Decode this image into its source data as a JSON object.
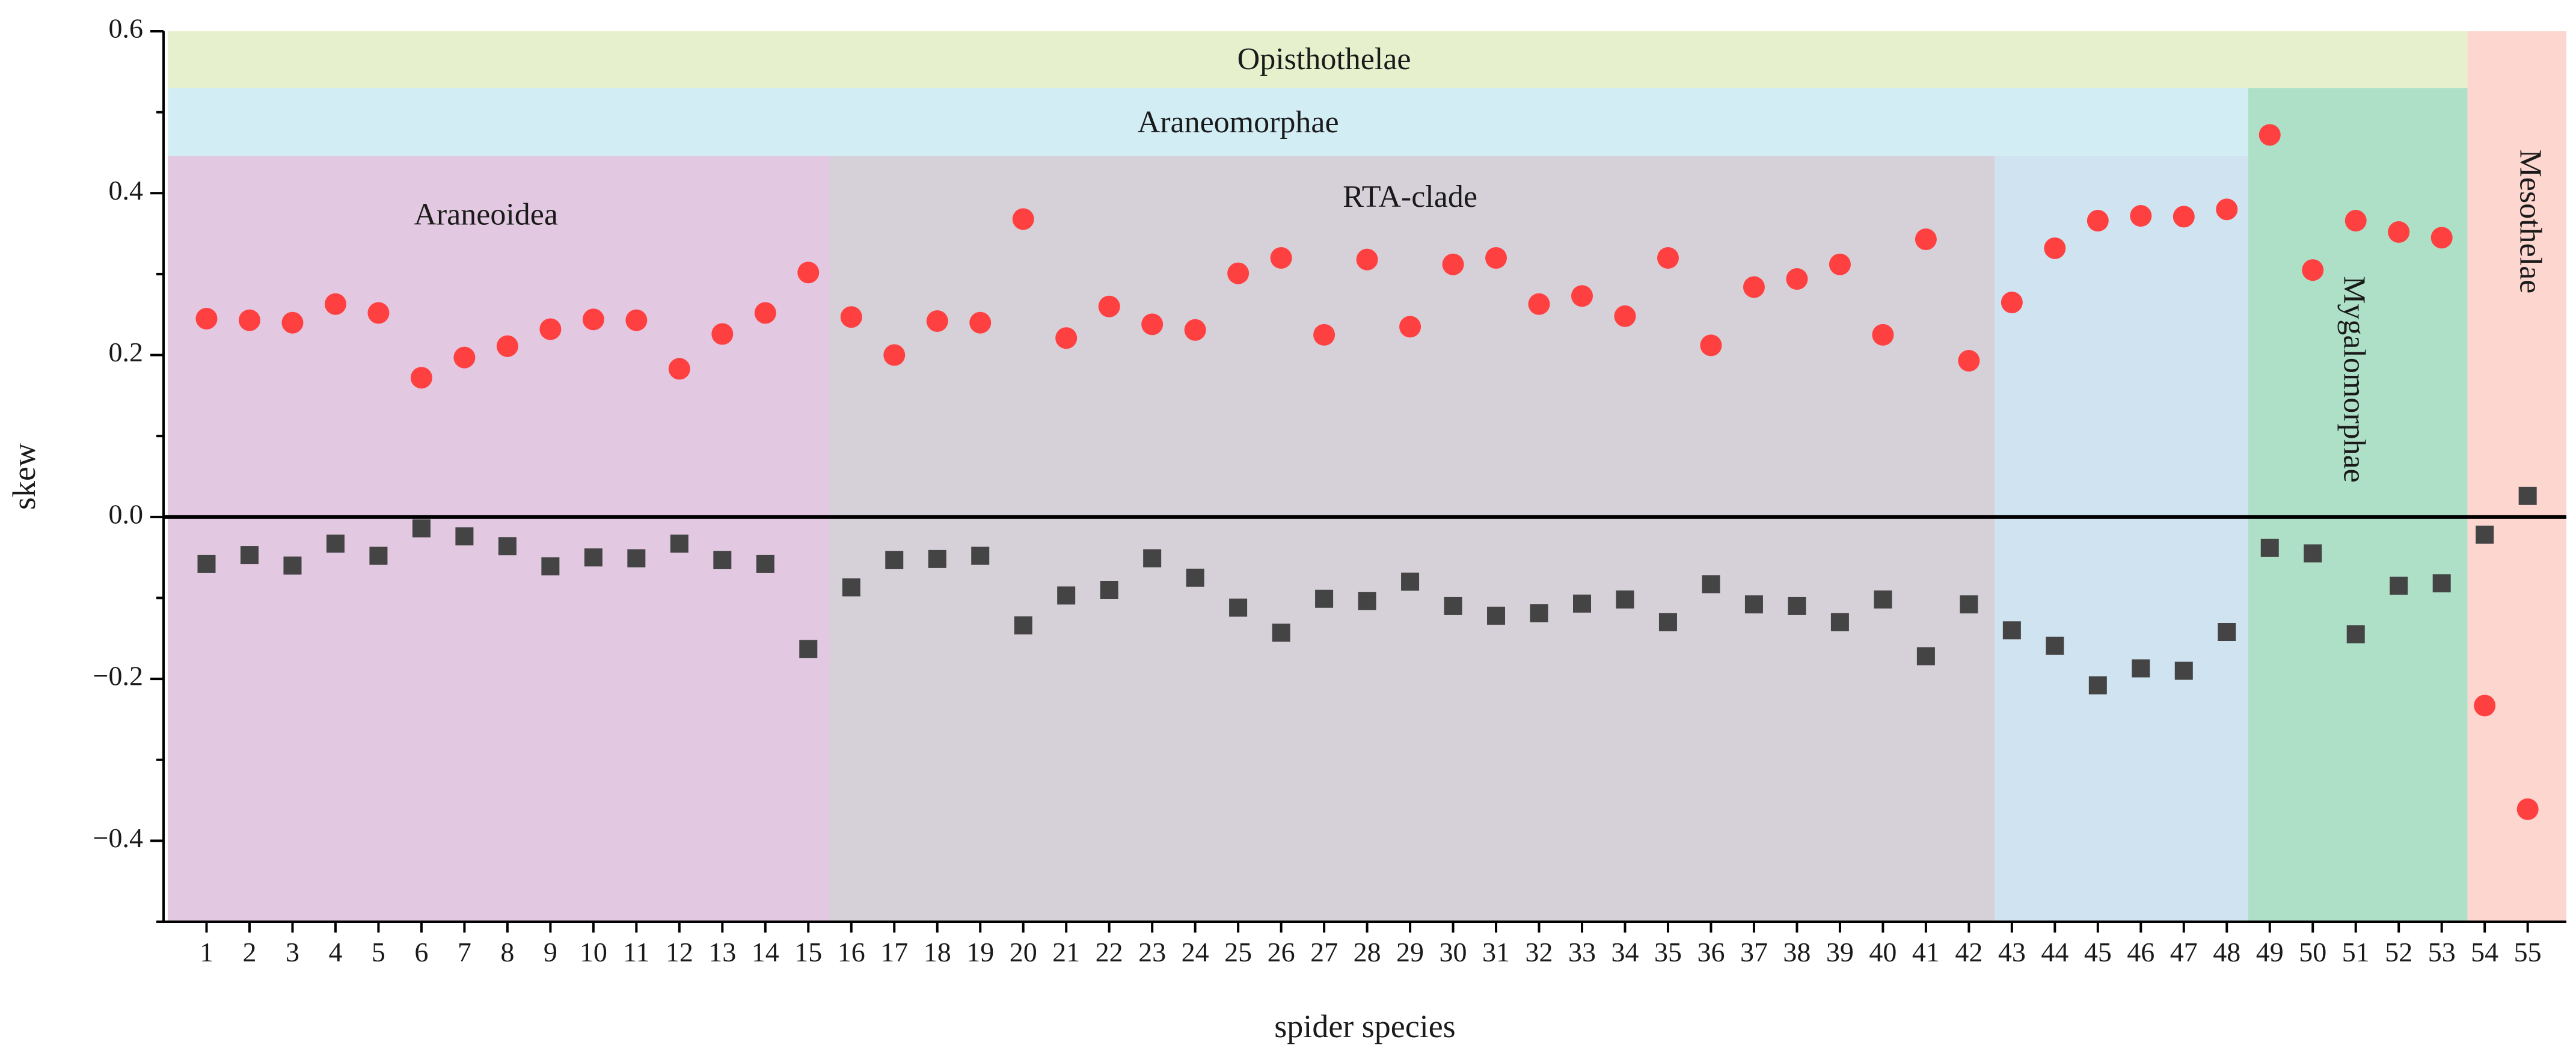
{
  "chart_data": {
    "type": "scatter",
    "xlabel": "spider species",
    "ylabel": "skew",
    "ylim": [
      -0.5,
      0.6
    ],
    "yticks": [
      -0.4,
      -0.2,
      0.0,
      0.2,
      0.4,
      0.6
    ],
    "ytick_labels": [
      "−0.4",
      "−0.2",
      "0.0",
      "0.2",
      "0.4",
      "0.6"
    ],
    "x": [
      1,
      2,
      3,
      4,
      5,
      6,
      7,
      8,
      9,
      10,
      11,
      12,
      13,
      14,
      15,
      16,
      17,
      18,
      19,
      20,
      21,
      22,
      23,
      24,
      25,
      26,
      27,
      28,
      29,
      30,
      31,
      32,
      33,
      34,
      35,
      36,
      37,
      38,
      39,
      40,
      41,
      42,
      43,
      44,
      45,
      46,
      47,
      48,
      49,
      50,
      51,
      52,
      53,
      54,
      55
    ],
    "series": [
      {
        "name": "red circles",
        "marker": "circle",
        "color": "#ff4040",
        "values": [
          0.245,
          0.243,
          0.24,
          0.263,
          0.252,
          0.172,
          0.197,
          0.211,
          0.232,
          0.244,
          0.243,
          0.183,
          0.226,
          0.252,
          0.302,
          0.247,
          0.2,
          0.242,
          0.24,
          0.368,
          0.221,
          0.26,
          0.238,
          0.231,
          0.301,
          0.32,
          0.225,
          0.318,
          0.235,
          0.312,
          0.32,
          0.263,
          0.273,
          0.248,
          0.32,
          0.212,
          0.284,
          0.294,
          0.312,
          0.225,
          0.343,
          0.193,
          0.265,
          0.332,
          0.366,
          0.372,
          0.371,
          0.38,
          0.472,
          0.305,
          0.366,
          0.352,
          0.345,
          -0.233,
          -0.361
        ]
      },
      {
        "name": "dark squares",
        "marker": "square",
        "color": "#444444",
        "values": [
          -0.058,
          -0.047,
          -0.06,
          -0.033,
          -0.048,
          -0.014,
          -0.024,
          -0.036,
          -0.061,
          -0.05,
          -0.051,
          -0.033,
          -0.053,
          -0.058,
          -0.163,
          -0.087,
          -0.053,
          -0.052,
          -0.048,
          -0.134,
          -0.097,
          -0.09,
          -0.051,
          -0.075,
          -0.112,
          -0.143,
          -0.101,
          -0.104,
          -0.08,
          -0.11,
          -0.122,
          -0.119,
          -0.107,
          -0.102,
          -0.13,
          -0.083,
          -0.108,
          -0.11,
          -0.13,
          -0.102,
          -0.172,
          -0.108,
          -0.14,
          -0.159,
          -0.208,
          -0.187,
          -0.19,
          -0.142,
          -0.038,
          -0.045,
          -0.145,
          -0.085,
          -0.082,
          -0.022,
          0.026
        ]
      }
    ],
    "bands": [
      {
        "label": "Opisthothelae",
        "x_from": 0.1,
        "x_to": 53.6,
        "y_from": 0.53,
        "y_to": 0.6,
        "color": "#e7f0cd",
        "label_x": 27,
        "label_y": 0.562,
        "vertical": false
      },
      {
        "label": "Araneomorphae",
        "x_from": 0.1,
        "x_to": 48.5,
        "y_from": 0.446,
        "y_to": 0.53,
        "color": "#d2eef4",
        "label_x": 25,
        "label_y": 0.484,
        "vertical": false
      },
      {
        "label": "Araneoidea",
        "x_from": 0.1,
        "x_to": 15.5,
        "y_from": -0.5,
        "y_to": 0.446,
        "color": "#e2c8e0",
        "label_x": 7.5,
        "label_y": 0.37,
        "vertical": false
      },
      {
        "label": "RTA-clade",
        "x_from": 15.5,
        "x_to": 42.6,
        "y_from": -0.5,
        "y_to": 0.446,
        "color": "#d6d0d8",
        "label_x": 29,
        "label_y": 0.392,
        "vertical": false
      },
      {
        "label": "",
        "x_from": 42.6,
        "x_to": 48.5,
        "y_from": -0.5,
        "y_to": 0.446,
        "color": "#cfe3f0",
        "label_x": 45,
        "label_y": 0.0,
        "vertical": false
      },
      {
        "label": "Mygalomorphae",
        "x_from": 48.5,
        "x_to": 53.6,
        "y_from": -0.5,
        "y_to": 0.53,
        "color": "#aee0c7",
        "label_x": 50.9,
        "label_y": 0.17,
        "vertical": true
      },
      {
        "label": "Mesothelae",
        "x_from": 53.6,
        "x_to": 55.9,
        "y_from": -0.5,
        "y_to": 0.6,
        "color": "#fdd6cf",
        "label_x": 55.0,
        "label_y": 0.365,
        "vertical": true
      }
    ]
  }
}
